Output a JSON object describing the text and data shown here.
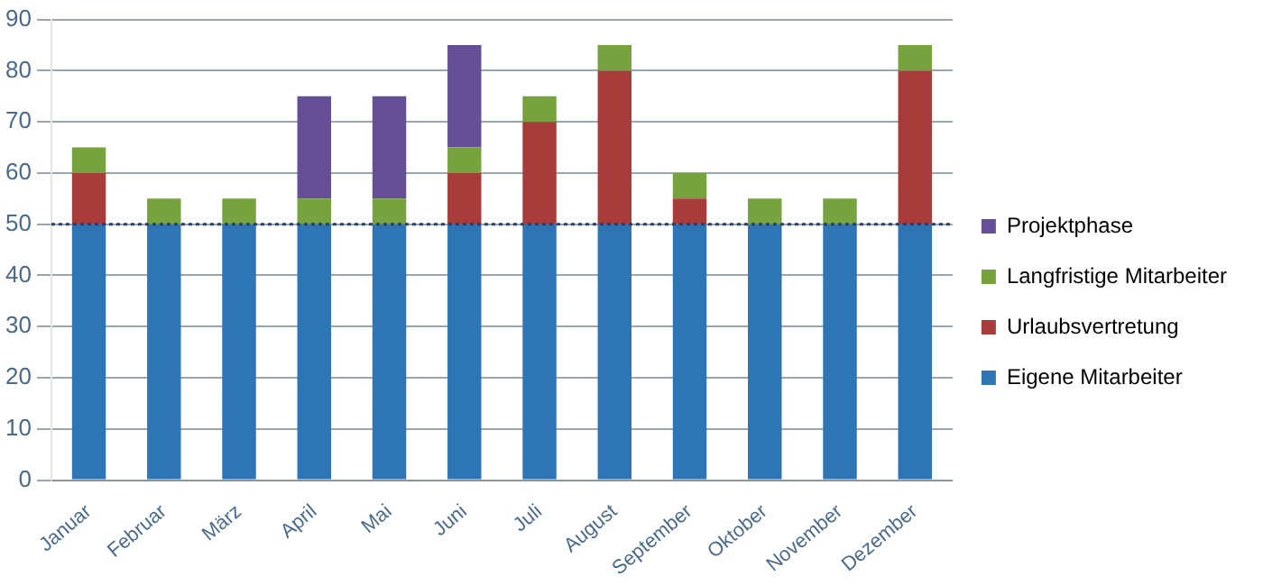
{
  "chart_data": {
    "type": "bar",
    "stacked": true,
    "categories": [
      "Januar",
      "Februar",
      "März",
      "April",
      "Mai",
      "Juni",
      "Juli",
      "August",
      "September",
      "Oktober",
      "November",
      "Dezember"
    ],
    "series": [
      {
        "name": "Eigene Mitarbeiter",
        "color": "#2e75b6",
        "values": [
          50,
          50,
          50,
          50,
          50,
          50,
          50,
          50,
          50,
          50,
          50,
          50
        ]
      },
      {
        "name": "Urlaubsvertretung",
        "color": "#a83c3a",
        "values": [
          10,
          0,
          0,
          0,
          0,
          10,
          20,
          30,
          5,
          0,
          0,
          30
        ]
      },
      {
        "name": "Langfristige Mitarbeiter",
        "color": "#77a33e",
        "values": [
          5,
          5,
          5,
          5,
          5,
          5,
          5,
          5,
          5,
          5,
          5,
          5
        ]
      },
      {
        "name": "Projektphase",
        "color": "#654f96",
        "values": [
          0,
          0,
          0,
          20,
          20,
          20,
          0,
          0,
          0,
          0,
          0,
          0
        ]
      }
    ],
    "ylim": [
      0,
      90
    ],
    "yticks": [
      0,
      10,
      20,
      30,
      40,
      50,
      60,
      70,
      80,
      90
    ],
    "grid": "y",
    "legend": "right",
    "ref_lines": [
      {
        "axis": "y",
        "value": 50,
        "color": "#1f3f7a",
        "line_style": "dotted"
      }
    ]
  }
}
